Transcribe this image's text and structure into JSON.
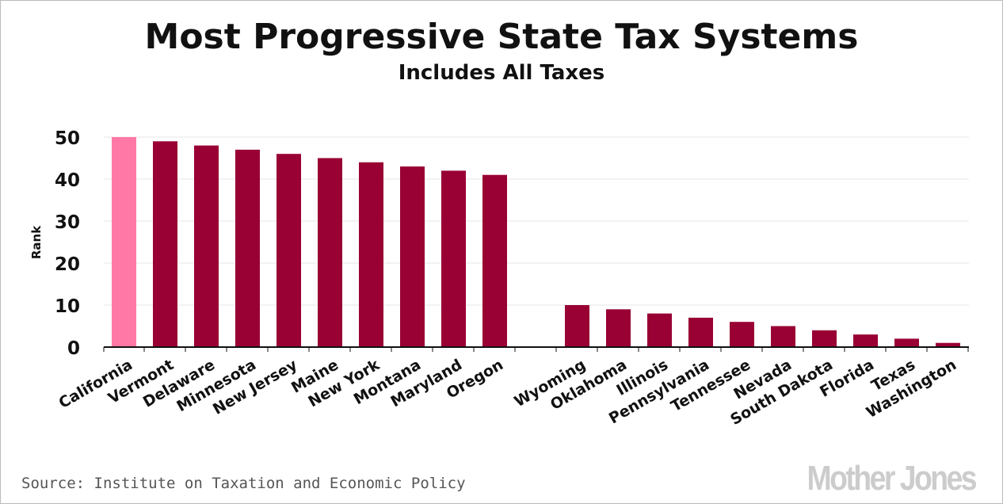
{
  "chart_data": {
    "type": "bar",
    "title": "Most Progressive State Tax Systems",
    "subtitle": "Includes All Taxes",
    "xlabel": "",
    "ylabel": "Rank",
    "ylim": [
      0,
      50
    ],
    "yticks": [
      0,
      10,
      20,
      30,
      40,
      50
    ],
    "grid": true,
    "categories": [
      "California",
      "Vermont",
      "Delaware",
      "Minnesota",
      "New Jersey",
      "Maine",
      "New York",
      "Montana",
      "Maryland",
      "Oregon",
      "",
      "Wyoming",
      "Oklahoma",
      "Illinois",
      "Pennsylvania",
      "Tennessee",
      "Nevada",
      "South Dakota",
      "Florida",
      "Texas",
      "Washington"
    ],
    "values": [
      50,
      49,
      48,
      47,
      46,
      45,
      44,
      43,
      42,
      41,
      null,
      10,
      9,
      8,
      7,
      6,
      5,
      4,
      3,
      2,
      1
    ],
    "highlight_index": 0,
    "colors": {
      "bar": "#990033",
      "highlight": "#ff78a6",
      "grid": "#e6e6e6"
    }
  },
  "source": "Source: Institute on Taxation and Economic Policy",
  "logo": "Mother Jones"
}
